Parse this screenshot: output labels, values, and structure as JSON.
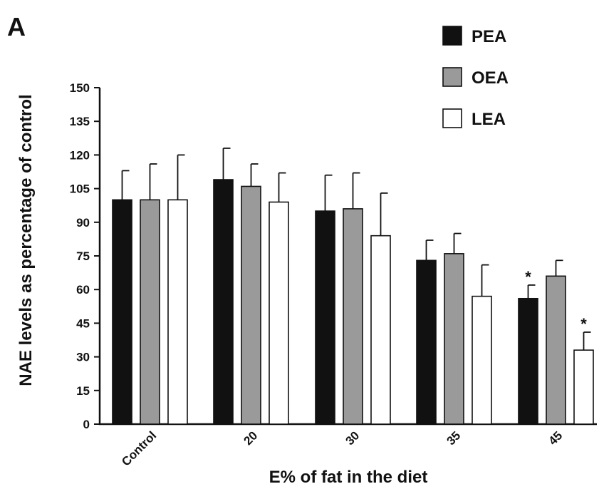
{
  "panel_label": "A",
  "chart_data": {
    "type": "bar",
    "title": "",
    "xlabel": "E% of fat in the diet",
    "ylabel": "NAE levels as percentage of control",
    "categories": [
      "Control",
      "20",
      "30",
      "35",
      "45"
    ],
    "ylim": [
      0,
      150
    ],
    "yticks": [
      "0",
      "15",
      "30",
      "45",
      "60",
      "75",
      "90",
      "105",
      "120",
      "135",
      "150"
    ],
    "grid": false,
    "legend_position": "top-right",
    "series": [
      {
        "name": "PEA",
        "color": "#111111",
        "values": [
          100,
          109,
          95,
          73,
          56
        ],
        "errors": [
          13,
          14,
          16,
          9,
          6
        ],
        "annotations": [
          "",
          "",
          "",
          "",
          "*"
        ]
      },
      {
        "name": "OEA",
        "color": "#9a9a9a",
        "values": [
          100,
          106,
          96,
          76,
          66
        ],
        "errors": [
          16,
          10,
          16,
          9,
          7
        ],
        "annotations": [
          "",
          "",
          "",
          "",
          ""
        ]
      },
      {
        "name": "LEA",
        "color": "#ffffff",
        "values": [
          100,
          99,
          84,
          57,
          33
        ],
        "errors": [
          20,
          13,
          19,
          14,
          8
        ],
        "annotations": [
          "",
          "",
          "",
          "",
          "*"
        ]
      }
    ]
  }
}
